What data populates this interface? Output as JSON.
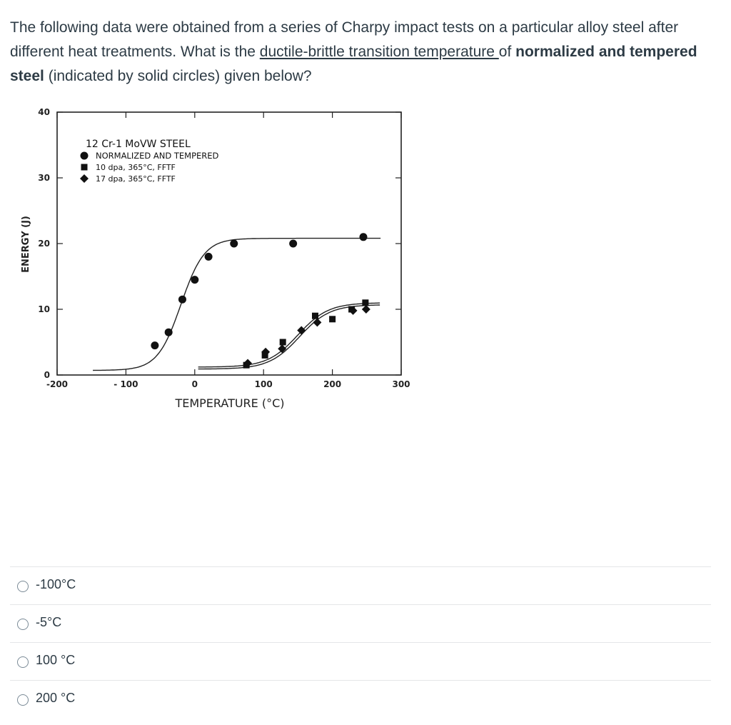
{
  "question": {
    "part1": "The following data were obtained from a series of Charpy impact tests on a particular alloy steel after different heat treatments. What is the ",
    "link": "ductile-brittle transition temperature ",
    "part2": "of ",
    "bold1": "normalized and tempered steel",
    "part3": " (indicated by solid circles)  given below?"
  },
  "chart_data": {
    "type": "scatter",
    "title": "12 Cr-1 MoVW STEEL",
    "xlabel": "TEMPERATURE (°C)",
    "ylabel": "ENERGY (J)",
    "xlim": [
      -200,
      300
    ],
    "ylim": [
      0,
      40
    ],
    "xticks": [
      -200,
      -100,
      0,
      100,
      200,
      300
    ],
    "xtick_labels": [
      "-200",
      "- 100",
      "0",
      "100",
      "200",
      "300"
    ],
    "yticks": [
      0,
      10,
      20,
      30,
      40
    ],
    "ytick_labels": [
      "0",
      "10",
      "20",
      "30",
      "40"
    ],
    "legend_position": "top-left",
    "series": [
      {
        "name": "NORMALIZED AND TEMPERED",
        "marker": "circle",
        "points": [
          [
            -58,
            4.5
          ],
          [
            -38,
            6.5
          ],
          [
            -18,
            11.5
          ],
          [
            0,
            14.5
          ],
          [
            20,
            18
          ],
          [
            57,
            20
          ],
          [
            143,
            20
          ],
          [
            245,
            21
          ]
        ]
      },
      {
        "name": "10 dpa, 365°C, FFTF",
        "marker": "square",
        "points": [
          [
            75,
            1.5
          ],
          [
            102,
            3
          ],
          [
            128,
            5
          ],
          [
            175,
            9
          ],
          [
            200,
            8.5
          ],
          [
            228,
            10
          ],
          [
            248,
            11
          ]
        ]
      },
      {
        "name": "17 dpa, 365°C, FFTF",
        "marker": "diamond",
        "points": [
          [
            77,
            1.8
          ],
          [
            103,
            3.5
          ],
          [
            127,
            4
          ],
          [
            155,
            6.8
          ],
          [
            178,
            8
          ],
          [
            230,
            9.8
          ],
          [
            249,
            10
          ]
        ]
      }
    ],
    "fit_curves": [
      {
        "series": "NORMALIZED AND TEMPERED",
        "lower": 0.7,
        "upper": 20.8,
        "mid": -20,
        "width": 17,
        "xrange": [
          -148,
          270
        ]
      },
      {
        "series": "10 dpa, 365°C, FFTF",
        "lower": 1.2,
        "upper": 11,
        "mid": 150,
        "width": 22,
        "xrange": [
          5,
          270
        ]
      },
      {
        "series": "17 dpa, 365°C, FFTF",
        "lower": 0.9,
        "upper": 10.7,
        "mid": 152,
        "width": 22,
        "xrange": [
          5,
          270
        ]
      }
    ]
  },
  "options": [
    {
      "label": "-100°C"
    },
    {
      "label": "-5°C"
    },
    {
      "label": "100 °C"
    },
    {
      "label": "200 °C"
    }
  ]
}
